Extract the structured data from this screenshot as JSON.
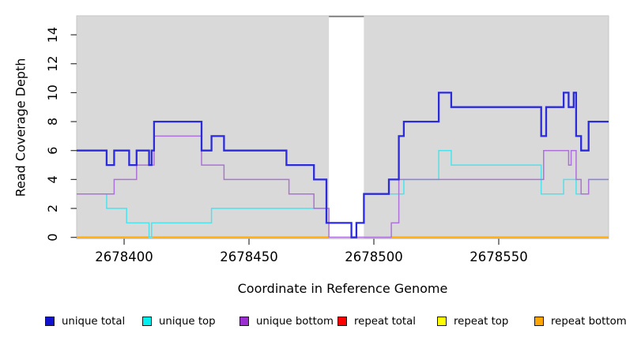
{
  "chart_data": {
    "type": "line",
    "subtype": "step-coverage",
    "title": "",
    "xlabel": "Coordinate in Reference Genome",
    "ylabel": "Read Coverage Depth",
    "xlim": [
      2678381,
      2678594
    ],
    "ylim": [
      0,
      15.3
    ],
    "x_ticks": [
      2678400,
      2678450,
      2678500,
      2678550
    ],
    "y_ticks": [
      0,
      2,
      4,
      6,
      8,
      10,
      12,
      14
    ],
    "grid": false,
    "plot_background": "#d9d9d9",
    "plot_border": "#c6c6c6",
    "highlight_band": {
      "from": 2678482,
      "to": 2678496,
      "fill": "#ffffff",
      "top_line": "#7f7f7f"
    },
    "x_end": 2678594,
    "series": [
      {
        "name": "unique total",
        "line_color": "#2b2bdb",
        "swatch_color": "#1111d1",
        "width": 2.3,
        "z": 6,
        "steps": [
          [
            2678381,
            6
          ],
          [
            2678393,
            5
          ],
          [
            2678396,
            6
          ],
          [
            2678402,
            5
          ],
          [
            2678405,
            6
          ],
          [
            2678410,
            5
          ],
          [
            2678411,
            6
          ],
          [
            2678412,
            8
          ],
          [
            2678431,
            6
          ],
          [
            2678435,
            7
          ],
          [
            2678440,
            6
          ],
          [
            2678465,
            5
          ],
          [
            2678476,
            4
          ],
          [
            2678481,
            1
          ],
          [
            2678491,
            0
          ],
          [
            2678493,
            1
          ],
          [
            2678496,
            3
          ],
          [
            2678506,
            4
          ],
          [
            2678510,
            7
          ],
          [
            2678512,
            8
          ],
          [
            2678526,
            10
          ],
          [
            2678531,
            9
          ],
          [
            2678567,
            7
          ],
          [
            2678569,
            9
          ],
          [
            2678576,
            10
          ],
          [
            2678578,
            9
          ],
          [
            2678580,
            10
          ],
          [
            2678581,
            7
          ],
          [
            2678583,
            6
          ],
          [
            2678586,
            8
          ]
        ]
      },
      {
        "name": "unique top",
        "line_color": "#4fe2ea",
        "swatch_color": "#00f0f0",
        "width": 1.5,
        "z": 4,
        "steps": [
          [
            2678381,
            3
          ],
          [
            2678393,
            2
          ],
          [
            2678401,
            1
          ],
          [
            2678410,
            0
          ],
          [
            2678411,
            1
          ],
          [
            2678435,
            2
          ],
          [
            2678481,
            1
          ],
          [
            2678491,
            0
          ],
          [
            2678493,
            1
          ],
          [
            2678496,
            3
          ],
          [
            2678512,
            4
          ],
          [
            2678526,
            6
          ],
          [
            2678531,
            5
          ],
          [
            2678567,
            3
          ],
          [
            2678576,
            4
          ],
          [
            2678581,
            3
          ],
          [
            2678586,
            4
          ]
        ]
      },
      {
        "name": "unique bottom",
        "line_color": "#ad71da",
        "swatch_color": "#9b2fd2",
        "width": 1.5,
        "z": 5,
        "steps": [
          [
            2678381,
            3
          ],
          [
            2678396,
            4
          ],
          [
            2678405,
            5
          ],
          [
            2678412,
            7
          ],
          [
            2678431,
            5
          ],
          [
            2678440,
            4
          ],
          [
            2678466,
            3
          ],
          [
            2678476,
            2
          ],
          [
            2678482,
            0
          ],
          [
            2678507,
            1
          ],
          [
            2678510,
            4
          ],
          [
            2678568,
            6
          ],
          [
            2678578,
            5
          ],
          [
            2678579,
            6
          ],
          [
            2678581,
            4
          ],
          [
            2678583,
            3
          ],
          [
            2678586,
            4
          ]
        ]
      },
      {
        "name": "repeat total",
        "line_color": "#e00000",
        "swatch_color": "#ff0000",
        "width": 1.6,
        "z": 1,
        "steps": [
          [
            2678381,
            0
          ]
        ]
      },
      {
        "name": "repeat top",
        "line_color": "#f5f500",
        "swatch_color": "#ffff00",
        "width": 1.6,
        "z": 2,
        "steps": [
          [
            2678381,
            0
          ]
        ]
      },
      {
        "name": "repeat bottom",
        "line_color": "#ffa500",
        "swatch_color": "#ffa500",
        "width": 1.6,
        "z": 3,
        "steps": [
          [
            2678381,
            0
          ]
        ]
      }
    ]
  },
  "legend": {
    "items": [
      {
        "label": "unique total",
        "swatch": "#1111d1"
      },
      {
        "label": "unique top",
        "swatch": "#00f0f0"
      },
      {
        "label": "unique bottom",
        "swatch": "#9b2fd2"
      },
      {
        "label": "repeat total",
        "swatch": "#ff0000"
      },
      {
        "label": "repeat top",
        "swatch": "#ffff00"
      },
      {
        "label": "repeat bottom",
        "swatch": "#ffa500"
      }
    ]
  }
}
